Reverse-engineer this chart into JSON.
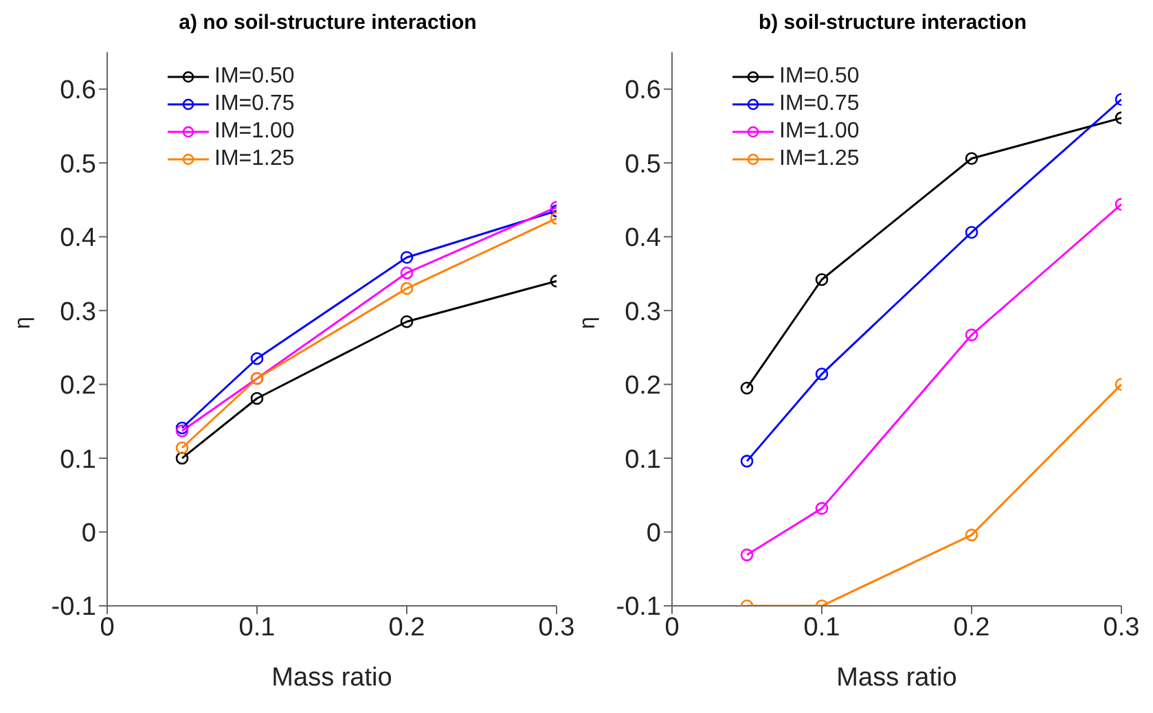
{
  "chart_data": [
    {
      "type": "line",
      "title": "a)  no soil-structure interaction",
      "xlabel": "Mass ratio",
      "ylabel": "η",
      "x": [
        0.05,
        0.1,
        0.2,
        0.3
      ],
      "xlim": [
        0,
        0.3
      ],
      "xticks": [
        0,
        0.1,
        0.2,
        0.3
      ],
      "ylim": [
        -0.1,
        0.65
      ],
      "yticks": [
        -0.1,
        0,
        0.1,
        0.2,
        0.3,
        0.4,
        0.5,
        0.6
      ],
      "marker": "circle",
      "legend": "top left",
      "grid": false,
      "series": [
        {
          "name": "IM=0.50",
          "color": "#000000",
          "values": [
            0.1,
            0.181,
            0.285,
            0.34
          ]
        },
        {
          "name": "IM=0.75",
          "color": "#0000ff",
          "values": [
            0.141,
            0.235,
            0.372,
            0.435
          ]
        },
        {
          "name": "IM=1.00",
          "color": "#ff00ff",
          "values": [
            0.137,
            0.208,
            0.351,
            0.44
          ]
        },
        {
          "name": "IM=1.25",
          "color": "#ff8000",
          "values": [
            0.114,
            0.208,
            0.33,
            0.425
          ]
        }
      ]
    },
    {
      "type": "line",
      "title": "b)  soil-structure interaction",
      "xlabel": "Mass ratio",
      "ylabel": "η",
      "x": [
        0.05,
        0.1,
        0.2,
        0.3
      ],
      "xlim": [
        0,
        0.3
      ],
      "xticks": [
        0,
        0.1,
        0.2,
        0.3
      ],
      "ylim": [
        -0.1,
        0.65
      ],
      "yticks": [
        -0.1,
        0,
        0.1,
        0.2,
        0.3,
        0.4,
        0.5,
        0.6
      ],
      "marker": "circle",
      "legend": "top left",
      "grid": false,
      "series": [
        {
          "name": "IM=0.50",
          "color": "#000000",
          "values": [
            0.195,
            0.342,
            0.506,
            0.561
          ]
        },
        {
          "name": "IM=0.75",
          "color": "#0000ff",
          "values": [
            0.096,
            0.214,
            0.406,
            0.586
          ]
        },
        {
          "name": "IM=1.00",
          "color": "#ff00ff",
          "values": [
            -0.031,
            0.032,
            0.267,
            0.444
          ]
        },
        {
          "name": "IM=1.25",
          "color": "#ff8000",
          "values": [
            -0.1,
            -0.1,
            -0.004,
            0.2
          ]
        }
      ]
    }
  ]
}
